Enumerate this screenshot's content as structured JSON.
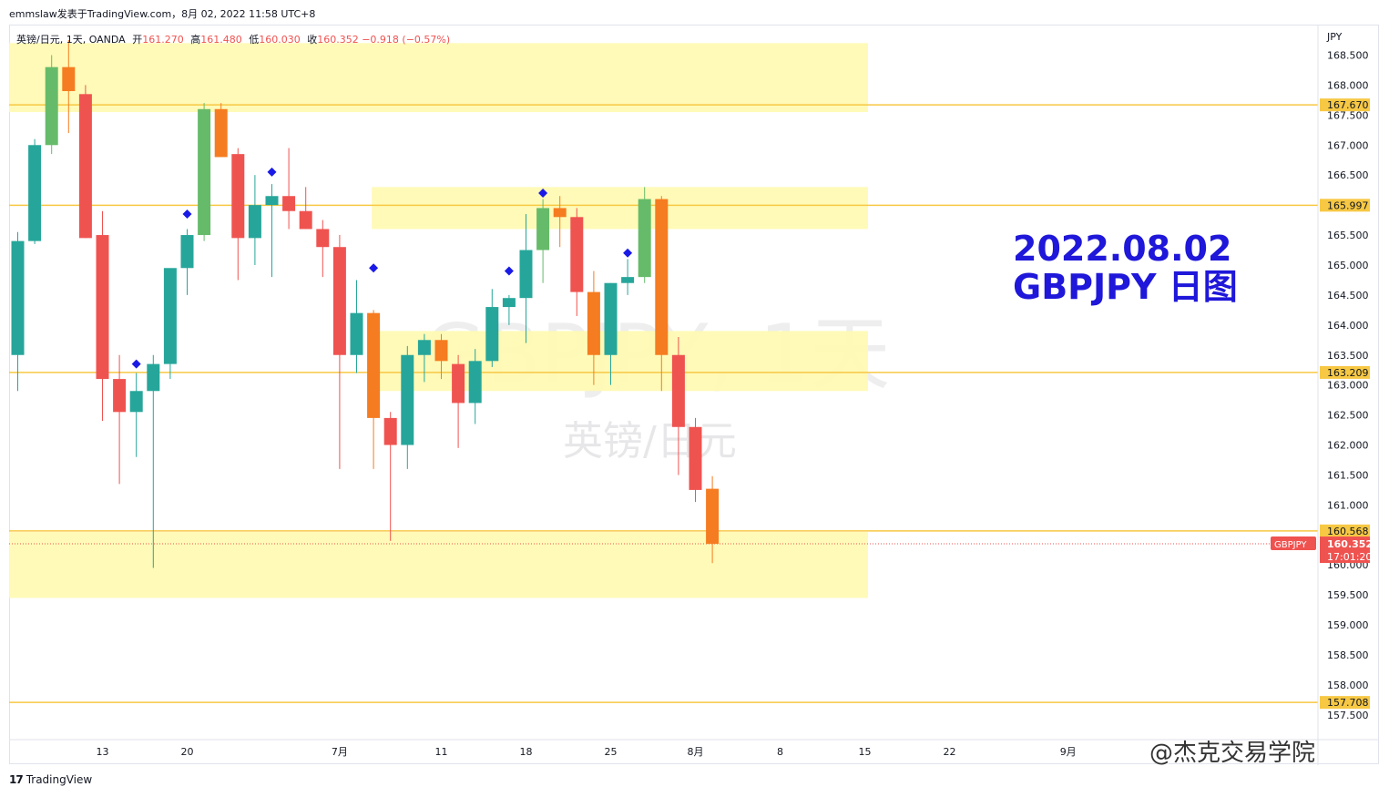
{
  "header": {
    "text": "emmslaw发表于TradingView.com，8月 02, 2022 11:58 UTC+8"
  },
  "legend": {
    "symbol": "英镑/日元, 1天, OANDA",
    "open_label": "开",
    "open": "161.270",
    "high_label": "高",
    "high": "161.480",
    "low_label": "低",
    "low": "160.030",
    "close_label": "收",
    "close": "160.352",
    "change": "−0.918 (−0.57%)"
  },
  "watermark": {
    "main": "GBPJPY, 1天",
    "sub": "英镑/日元"
  },
  "annotation": {
    "line1": "2022.08.02",
    "line2": "GBPJPY 日图"
  },
  "footer": {
    "brand": "TradingView",
    "credit": "@杰克交易学院"
  },
  "colors": {
    "up": "#26a69a",
    "down": "#ef5350",
    "up_highlight": "#66bb6a",
    "down_highlight": "#f57c20",
    "zone": "#fffaaf",
    "level_line": "#f7c843",
    "marker": "#1a1ae6",
    "annotation": "#1f17d9"
  },
  "chart_data": {
    "type": "candlestick",
    "currency": "JPY",
    "y_ticks": [
      "168.500",
      "168.000",
      "167.500",
      "167.000",
      "166.500",
      "166.000",
      "165.500",
      "165.000",
      "164.500",
      "164.000",
      "163.500",
      "163.000",
      "162.500",
      "162.000",
      "161.500",
      "161.000",
      "160.500",
      "160.000",
      "159.500",
      "159.000",
      "158.500",
      "158.000",
      "157.500"
    ],
    "ylim": [
      157.5,
      169.0
    ],
    "x_tick_labels": [
      {
        "label": "13",
        "idx": 5
      },
      {
        "label": "20",
        "idx": 10
      },
      {
        "label": "7月",
        "idx": 19
      },
      {
        "label": "11",
        "idx": 25
      },
      {
        "label": "18",
        "idx": 30
      },
      {
        "label": "25",
        "idx": 35
      },
      {
        "label": "8月",
        "idx": 40
      },
      {
        "label": "8",
        "idx": 45
      },
      {
        "label": "15",
        "idx": 50
      },
      {
        "label": "22",
        "idx": 55
      },
      {
        "label": "9月",
        "idx": 62
      }
    ],
    "candles": [
      {
        "o": 163.5,
        "h": 165.55,
        "l": 162.9,
        "c": 165.4
      },
      {
        "o": 165.4,
        "h": 167.1,
        "l": 165.35,
        "c": 167.0
      },
      {
        "o": 167.0,
        "h": 168.5,
        "l": 166.85,
        "c": 168.3,
        "hl": true
      },
      {
        "o": 168.3,
        "h": 168.75,
        "l": 167.2,
        "c": 167.9,
        "hl": true
      },
      {
        "o": 167.85,
        "h": 168.0,
        "l": 165.45,
        "c": 165.45
      },
      {
        "o": 165.5,
        "h": 165.9,
        "l": 162.4,
        "c": 163.1
      },
      {
        "o": 163.1,
        "h": 163.5,
        "l": 161.35,
        "c": 162.55
      },
      {
        "o": 162.55,
        "h": 163.2,
        "l": 161.8,
        "c": 162.9
      },
      {
        "o": 162.9,
        "h": 163.5,
        "l": 159.95,
        "c": 163.35
      },
      {
        "o": 163.35,
        "h": 164.9,
        "l": 163.1,
        "c": 164.95
      },
      {
        "o": 164.95,
        "h": 165.6,
        "l": 164.5,
        "c": 165.5
      },
      {
        "o": 165.5,
        "h": 167.7,
        "l": 165.4,
        "c": 167.6,
        "hl": true
      },
      {
        "o": 167.6,
        "h": 167.7,
        "l": 166.8,
        "c": 166.8,
        "hl": true
      },
      {
        "o": 166.85,
        "h": 166.95,
        "l": 164.75,
        "c": 165.45
      },
      {
        "o": 165.45,
        "h": 166.5,
        "l": 165.0,
        "c": 166.0
      },
      {
        "o": 166.0,
        "h": 166.35,
        "l": 164.8,
        "c": 166.15
      },
      {
        "o": 166.15,
        "h": 166.95,
        "l": 165.6,
        "c": 165.9
      },
      {
        "o": 165.9,
        "h": 166.3,
        "l": 165.6,
        "c": 165.6
      },
      {
        "o": 165.6,
        "h": 165.75,
        "l": 164.8,
        "c": 165.3
      },
      {
        "o": 165.3,
        "h": 165.5,
        "l": 161.6,
        "c": 163.5
      },
      {
        "o": 163.5,
        "h": 164.75,
        "l": 163.2,
        "c": 164.2
      },
      {
        "o": 164.2,
        "h": 164.25,
        "l": 161.6,
        "c": 162.45,
        "hl": true
      },
      {
        "o": 162.45,
        "h": 162.55,
        "l": 160.4,
        "c": 162.0
      },
      {
        "o": 162.0,
        "h": 163.65,
        "l": 161.6,
        "c": 163.5
      },
      {
        "o": 163.5,
        "h": 163.85,
        "l": 163.05,
        "c": 163.75
      },
      {
        "o": 163.75,
        "h": 163.85,
        "l": 163.1,
        "c": 163.4,
        "hl": true
      },
      {
        "o": 163.35,
        "h": 163.5,
        "l": 161.95,
        "c": 162.7
      },
      {
        "o": 162.7,
        "h": 163.6,
        "l": 162.35,
        "c": 163.4
      },
      {
        "o": 163.4,
        "h": 164.6,
        "l": 163.3,
        "c": 164.3
      },
      {
        "o": 164.3,
        "h": 164.5,
        "l": 164.0,
        "c": 164.45
      },
      {
        "o": 164.45,
        "h": 165.85,
        "l": 163.7,
        "c": 165.25
      },
      {
        "o": 165.25,
        "h": 166.1,
        "l": 164.7,
        "c": 165.95,
        "hl": true
      },
      {
        "o": 165.95,
        "h": 166.15,
        "l": 165.3,
        "c": 165.8,
        "hl": true
      },
      {
        "o": 165.8,
        "h": 165.95,
        "l": 164.15,
        "c": 164.55
      },
      {
        "o": 164.55,
        "h": 164.9,
        "l": 163.0,
        "c": 163.5,
        "hl": true
      },
      {
        "o": 163.5,
        "h": 164.7,
        "l": 163.0,
        "c": 164.7
      },
      {
        "o": 164.7,
        "h": 165.1,
        "l": 164.5,
        "c": 164.8
      },
      {
        "o": 164.8,
        "h": 166.3,
        "l": 164.7,
        "c": 166.1,
        "hl": true
      },
      {
        "o": 166.1,
        "h": 166.15,
        "l": 162.9,
        "c": 163.5,
        "hl": true
      },
      {
        "o": 163.5,
        "h": 163.8,
        "l": 161.5,
        "c": 162.3
      },
      {
        "o": 162.3,
        "h": 162.45,
        "l": 161.05,
        "c": 161.25
      },
      {
        "o": 161.27,
        "h": 161.48,
        "l": 160.03,
        "c": 160.352,
        "hl": true
      }
    ],
    "markers": [
      {
        "idx": 7,
        "price": 163.35
      },
      {
        "idx": 10,
        "price": 165.85
      },
      {
        "idx": 15,
        "price": 166.55
      },
      {
        "idx": 21,
        "price": 164.95
      },
      {
        "idx": 29,
        "price": 164.9
      },
      {
        "idx": 31,
        "price": 166.2
      },
      {
        "idx": 36,
        "price": 165.2
      }
    ],
    "zones": [
      {
        "top": 168.7,
        "bottom": 167.55
      },
      {
        "top": 166.3,
        "bottom": 165.6,
        "x_start_idx": 20.9
      },
      {
        "top": 163.9,
        "bottom": 162.9,
        "x_start_idx": 20.9
      },
      {
        "top": 160.55,
        "bottom": 159.45
      }
    ],
    "levels": [
      {
        "price": 167.67,
        "label": "167.670"
      },
      {
        "price": 165.997,
        "label": "165.997"
      },
      {
        "price": 163.209,
        "label": "163.209"
      },
      {
        "price": 160.568,
        "label": "160.568"
      },
      {
        "price": 157.708,
        "label": "157.708"
      }
    ],
    "last_price": {
      "symbol": "GBPJPY",
      "price": 160.352,
      "label": "160.352",
      "countdown": "17:01:20"
    }
  }
}
